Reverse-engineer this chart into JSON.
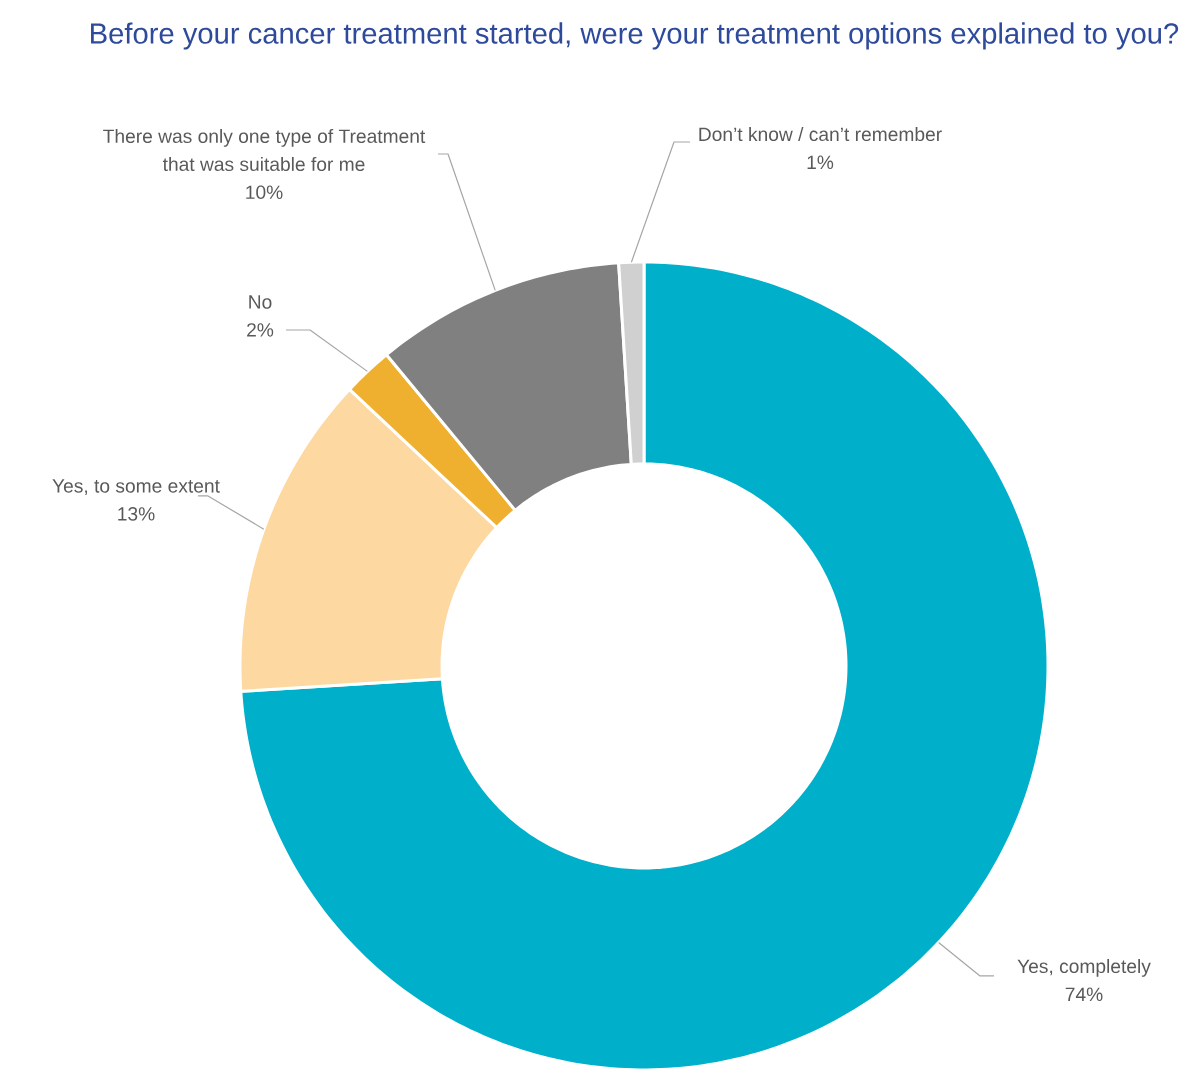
{
  "chart_data": {
    "type": "donut",
    "title": "Before your cancer treatment started, were your treatment options explained to you?",
    "categories": [
      "Yes, completely",
      "Yes, to some extent",
      "No",
      "There was only one type of Treatment that was suitable for me",
      "Don’t know / can’t remember"
    ],
    "values": [
      74,
      13,
      2,
      10,
      1
    ],
    "colors": [
      "#00b0ca",
      "#fdd8a0",
      "#efb030",
      "#808080",
      "#d0d0d0"
    ],
    "value_labels": [
      "74%",
      "13%",
      "2%",
      "10%",
      "1%"
    ]
  }
}
